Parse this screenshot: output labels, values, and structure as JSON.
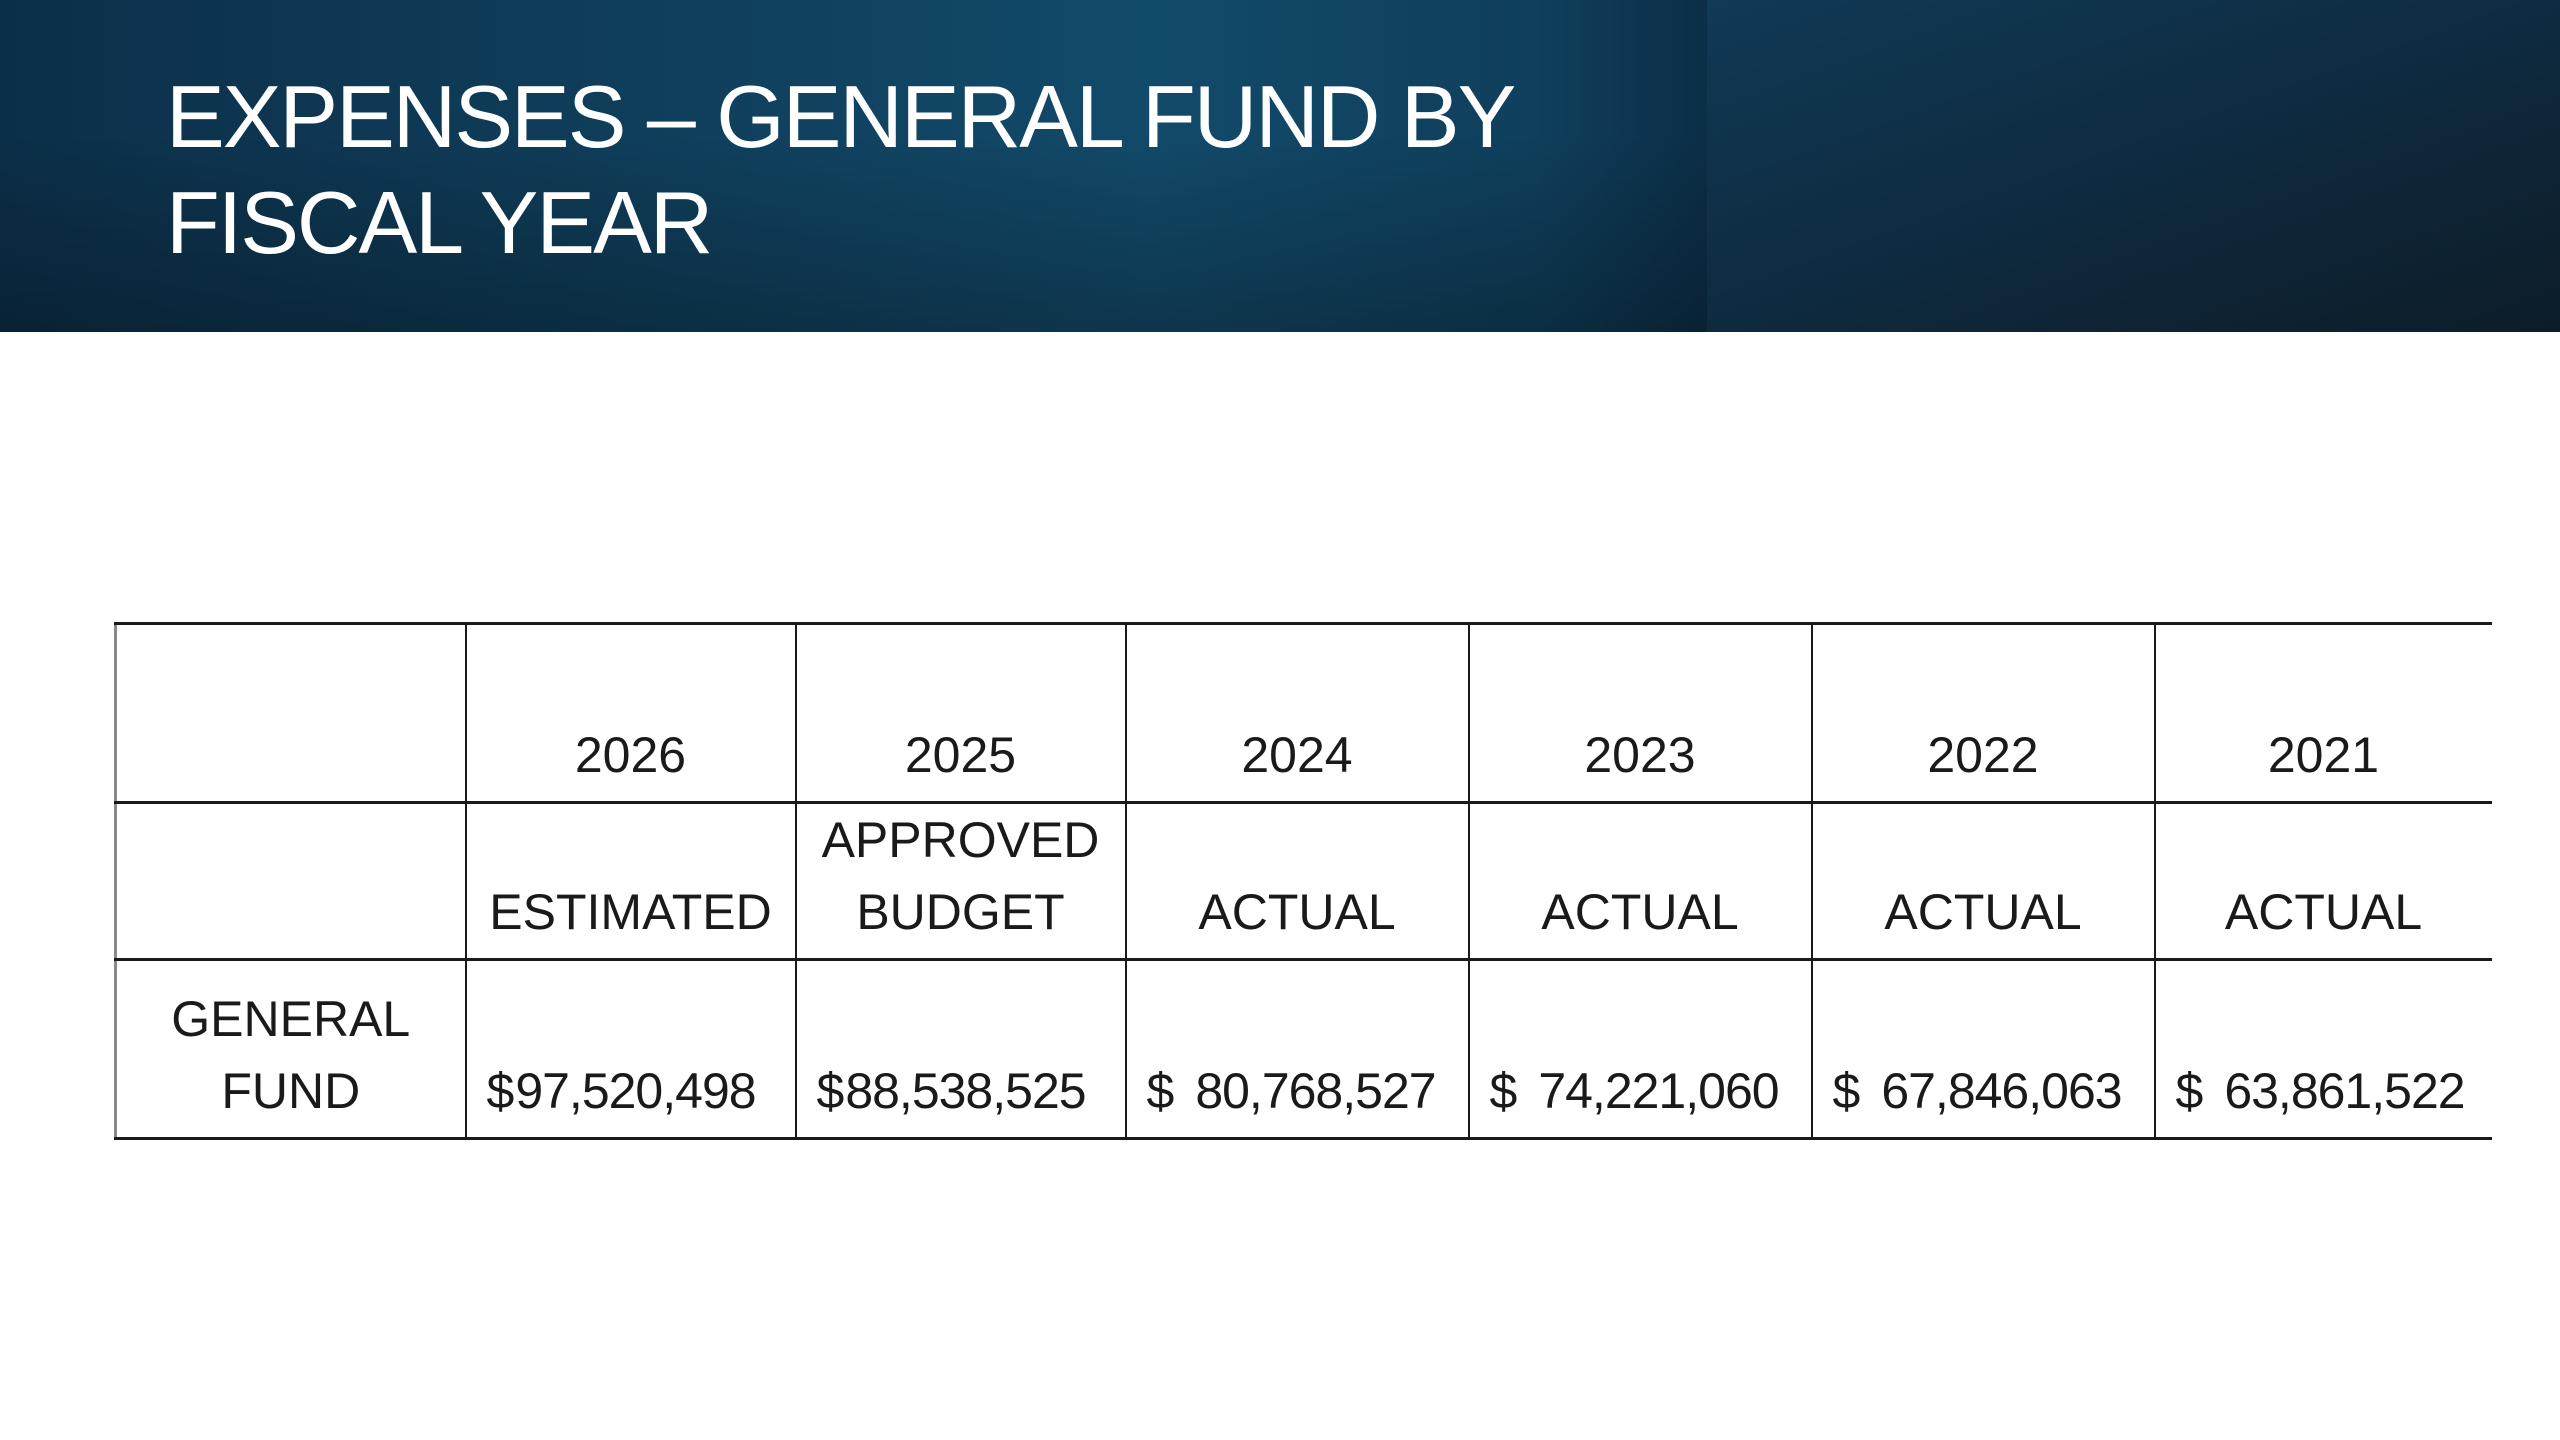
{
  "header": {
    "title": "EXPENSES – GENERAL FUND BY\nFISCAL YEAR"
  },
  "table": {
    "columns": [
      {
        "year": "2026",
        "status": "ESTIMATED",
        "currency": "$",
        "amount": "97,520,498"
      },
      {
        "year": "2025",
        "status": "APPROVED\nBUDGET",
        "currency": "$",
        "amount": "88,538,525"
      },
      {
        "year": "2024",
        "status": "ACTUAL",
        "currency": "$",
        "amount": "80,768,527"
      },
      {
        "year": "2023",
        "status": "ACTUAL",
        "currency": "$",
        "amount": "74,221,060"
      },
      {
        "year": "2022",
        "status": "ACTUAL",
        "currency": "$",
        "amount": "67,846,063"
      },
      {
        "year": "2021",
        "status": "ACTUAL",
        "currency": "$",
        "amount": "63,861,522"
      }
    ],
    "row_label": "GENERAL\nFUND"
  },
  "colors": {
    "banner_dark": "#0c2f49",
    "banner_mid": "#124a6a",
    "text": "#1a1a1a"
  }
}
